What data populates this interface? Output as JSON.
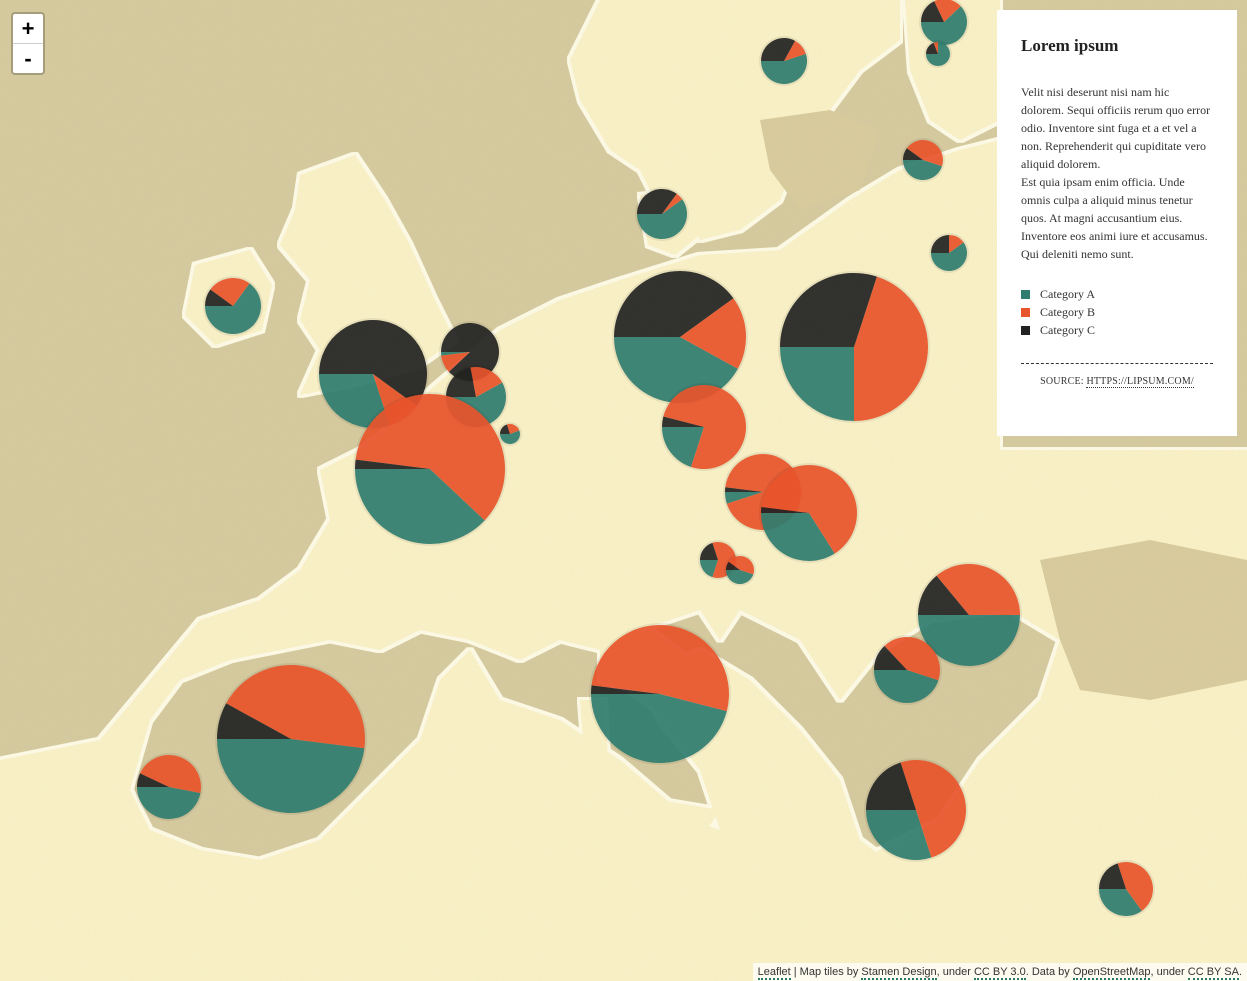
{
  "colors": {
    "category_a": "#2f7d6f",
    "category_b": "#e8542c",
    "category_c": "#222222",
    "land": "#fbf3c8",
    "sea": "#d9cfa4",
    "coast": "#fffce8"
  },
  "zoom": {
    "in_label": "+",
    "out_label": "-"
  },
  "panel": {
    "title": "Lorem ipsum",
    "paragraph_1": "Velit nisi deserunt nisi nam hic dolorem. Sequi officiis rerum quo error odio. Inventore sint fuga et a et vel a non. Reprehenderit qui cupiditate vero aliquid dolorem.",
    "paragraph_2": "Est quia ipsam enim officia. Unde omnis culpa a aliquid minus tenetur quos. At magni accusantium eius. Inventore eos animi iure et accusamus. Qui deleniti nemo sunt.",
    "legend": [
      {
        "label": "Category A",
        "color": "#2f7d6f"
      },
      {
        "label": "Category B",
        "color": "#e8542c"
      },
      {
        "label": "Category C",
        "color": "#222222"
      }
    ],
    "source_label": "SOURCE:",
    "source_link": "HTTPS://LIPSUM.COM/"
  },
  "attribution": {
    "leaflet": "Leaflet",
    "sep": " | Map tiles by ",
    "stamen": "Stamen Design",
    "under1": ", under ",
    "ccby": "CC BY 3.0",
    "data_by": ". Data by ",
    "osm": "OpenStreetMap",
    "under2": ", under ",
    "ccbysa": "CC BY SA",
    "end": "."
  },
  "pies": [
    {
      "a": 0.62,
      "b": 0.2,
      "c": 0.18
    },
    {
      "a": 0.75,
      "b": 0.06,
      "c": 0.19
    },
    {
      "a": 0.55,
      "b": 0.12,
      "c": 0.33
    },
    {
      "a": 0.45,
      "b": 0.45,
      "c": 0.1
    },
    {
      "a": 0.6,
      "b": 0.15,
      "c": 0.25
    },
    {
      "a": 0.6,
      "b": 0.05,
      "c": 0.35
    },
    {
      "a": 0.65,
      "b": 0.25,
      "c": 0.1
    },
    {
      "a": 0.42,
      "b": 0.18,
      "c": 0.4
    },
    {
      "a": 0.25,
      "b": 0.45,
      "c": 0.3
    },
    {
      "a": 0.3,
      "b": 0.1,
      "c": 0.6
    },
    {
      "a": 0.02,
      "b": 0.1,
      "c": 0.88
    },
    {
      "a": 0.58,
      "b": 0.2,
      "c": 0.22
    },
    {
      "a": 0.56,
      "b": 0.24,
      "c": 0.2
    },
    {
      "a": 0.38,
      "b": 0.6,
      "c": 0.02
    },
    {
      "a": 0.2,
      "b": 0.76,
      "c": 0.04
    },
    {
      "a": 0.05,
      "b": 0.93,
      "c": 0.02
    },
    {
      "a": 0.34,
      "b": 0.64,
      "c": 0.02
    },
    {
      "a": 0.2,
      "b": 0.6,
      "c": 0.2
    },
    {
      "a": 0.45,
      "b": 0.45,
      "c": 0.1
    },
    {
      "a": 0.5,
      "b": 0.36,
      "c": 0.14
    },
    {
      "a": 0.45,
      "b": 0.42,
      "c": 0.13
    },
    {
      "a": 0.46,
      "b": 0.52,
      "c": 0.02
    },
    {
      "a": 0.48,
      "b": 0.44,
      "c": 0.08
    },
    {
      "a": 0.47,
      "b": 0.46,
      "c": 0.07
    },
    {
      "a": 0.3,
      "b": 0.5,
      "c": 0.2
    },
    {
      "a": 0.35,
      "b": 0.45,
      "c": 0.2
    }
  ]
}
